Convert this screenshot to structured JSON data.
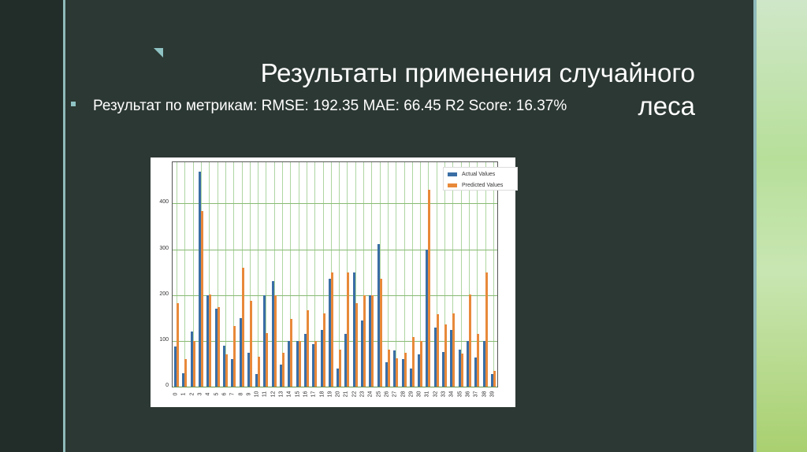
{
  "slide": {
    "title": "Результаты применения случайного леса",
    "title_line1": "Результаты применения случайного",
    "title_line2": "леса",
    "bullet_text": "Результат по метрикам: RMSE: 192.35 MAE: 66.45 R2 Score: 16.37%",
    "metrics": {
      "RMSE": "192.35",
      "MAE": "66.45",
      "R2 Score": "16.37%"
    }
  },
  "colors": {
    "actual": "#3a6ea5",
    "predicted": "#e8893a",
    "background": "#2c3833",
    "accent": "#8fc3c4"
  },
  "chart_data": {
    "type": "bar",
    "title": "",
    "xlabel": "",
    "ylabel": "",
    "ylim": [
      0,
      490
    ],
    "yticks": [
      0,
      100,
      200,
      300,
      400
    ],
    "grid": true,
    "legend_position": "upper right",
    "categories": [
      "0",
      "1",
      "2",
      "3",
      "4",
      "5",
      "6",
      "7",
      "8",
      "9",
      "10",
      "11",
      "12",
      "13",
      "14",
      "15",
      "16",
      "17",
      "18",
      "19",
      "20",
      "21",
      "22",
      "23",
      "24",
      "25",
      "26",
      "27",
      "28",
      "29",
      "30",
      "31",
      "32",
      "33",
      "34",
      "35",
      "36",
      "37",
      "38",
      "39"
    ],
    "series": [
      {
        "name": "Actual Values",
        "values": [
          88,
          30,
          120,
          470,
          200,
          170,
          90,
          60,
          150,
          74,
          28,
          200,
          230,
          48,
          100,
          100,
          115,
          93,
          124,
          235,
          40,
          115,
          250,
          145,
          200,
          312,
          53,
          79,
          60,
          40,
          70,
          300,
          129,
          75,
          124,
          80,
          100,
          63,
          100,
          28
        ]
      },
      {
        "name": "Predicted Values",
        "values": [
          182,
          60,
          100,
          383,
          202,
          174,
          70,
          133,
          260,
          188,
          65,
          117,
          200,
          74,
          148,
          100,
          166,
          100,
          160,
          250,
          80,
          250,
          182,
          199,
          200,
          235,
          80,
          62,
          74,
          109,
          100,
          430,
          158,
          135,
          160,
          72,
          202,
          116,
          250,
          34
        ]
      }
    ]
  }
}
